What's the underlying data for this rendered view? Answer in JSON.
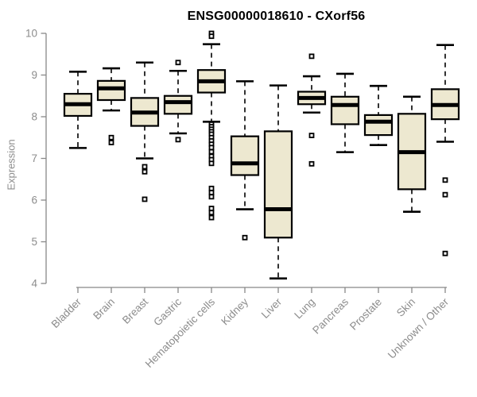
{
  "chart_data": {
    "type": "boxplot",
    "title": "ENSG00000018610 - CXorf56",
    "xlabel": "",
    "ylabel": "Expression",
    "ylim": [
      4,
      10
    ],
    "yticks": [
      4,
      5,
      6,
      7,
      8,
      9,
      10
    ],
    "grid": false,
    "legend": "none",
    "categories": [
      "Bladder",
      "Brain",
      "Breast",
      "Gastric",
      "Hematopoietic cells",
      "Kidney",
      "Liver",
      "Lung",
      "Pancreas",
      "Prostate",
      "Skin",
      "Unknown / Other"
    ],
    "boxes": [
      {
        "category": "Bladder",
        "whisker_low": 7.25,
        "q1": 8.02,
        "median": 8.3,
        "q3": 8.55,
        "whisker_high": 9.08,
        "outliers": []
      },
      {
        "category": "Brain",
        "whisker_low": 8.15,
        "q1": 8.4,
        "median": 8.68,
        "q3": 8.86,
        "whisker_high": 9.16,
        "outliers": [
          7.5,
          7.38
        ]
      },
      {
        "category": "Breast",
        "whisker_low": 7.0,
        "q1": 7.78,
        "median": 8.1,
        "q3": 8.45,
        "whisker_high": 9.3,
        "outliers": [
          6.8,
          6.68,
          6.02
        ]
      },
      {
        "category": "Gastric",
        "whisker_low": 7.6,
        "q1": 8.07,
        "median": 8.35,
        "q3": 8.5,
        "whisker_high": 9.1,
        "outliers": [
          9.3,
          7.45
        ]
      },
      {
        "category": "Hematopoietic cells",
        "whisker_low": 7.88,
        "q1": 8.58,
        "median": 8.85,
        "q3": 9.12,
        "whisker_high": 9.74,
        "outliers": [
          10.0,
          9.93,
          7.82,
          7.76,
          7.7,
          7.64,
          7.58,
          7.5,
          7.42,
          7.34,
          7.26,
          7.16,
          7.05,
          6.97,
          6.88,
          6.28,
          6.18,
          6.08,
          5.8,
          5.7,
          5.58
        ]
      },
      {
        "category": "Kidney",
        "whisker_low": 5.78,
        "q1": 6.6,
        "median": 6.88,
        "q3": 7.53,
        "whisker_high": 8.85,
        "outliers": [
          5.1
        ]
      },
      {
        "category": "Liver",
        "whisker_low": 4.12,
        "q1": 5.1,
        "median": 5.78,
        "q3": 7.65,
        "whisker_high": 8.75,
        "outliers": []
      },
      {
        "category": "Lung",
        "whisker_low": 8.1,
        "q1": 8.3,
        "median": 8.45,
        "q3": 8.6,
        "whisker_high": 8.97,
        "outliers": [
          9.45,
          7.55,
          6.87
        ]
      },
      {
        "category": "Pancreas",
        "whisker_low": 7.15,
        "q1": 7.82,
        "median": 8.28,
        "q3": 8.48,
        "whisker_high": 9.03,
        "outliers": []
      },
      {
        "category": "Prostate",
        "whisker_low": 7.32,
        "q1": 7.56,
        "median": 7.88,
        "q3": 8.04,
        "whisker_high": 8.74,
        "outliers": []
      },
      {
        "category": "Skin",
        "whisker_low": 5.72,
        "q1": 6.26,
        "median": 7.15,
        "q3": 8.07,
        "whisker_high": 8.48,
        "outliers": []
      },
      {
        "category": "Unknown / Other",
        "whisker_low": 7.4,
        "q1": 7.94,
        "median": 8.28,
        "q3": 8.66,
        "whisker_high": 9.72,
        "outliers": [
          6.48,
          6.13,
          4.72
        ]
      }
    ],
    "colors": {
      "box_fill": "#EDE8D0",
      "box_stroke": "#000000",
      "median": "#000000",
      "whisker": "#000000",
      "outlier_stroke": "#000000",
      "outlier_fill": "#FFFFFF",
      "axis_line": "#888888",
      "tick_label": "#8C8C8C",
      "title": "#000000",
      "background": "#FFFFFF"
    }
  }
}
